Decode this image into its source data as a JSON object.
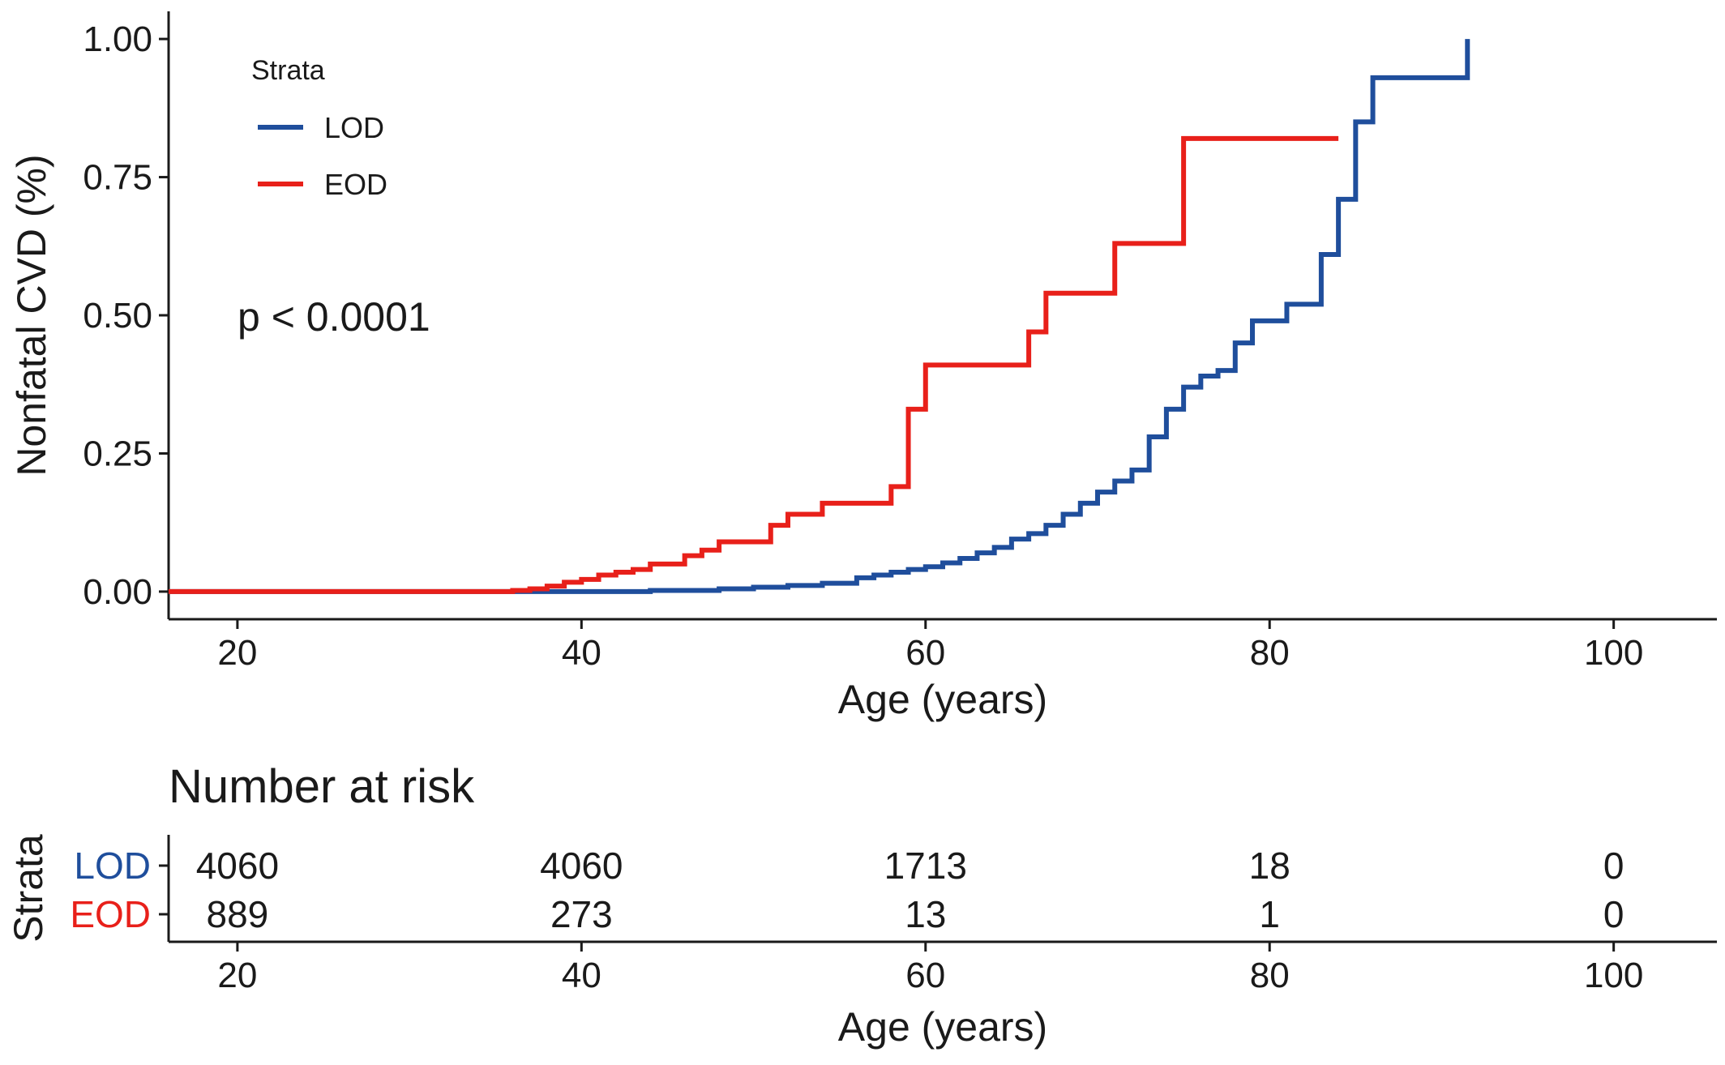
{
  "chart_data": [
    {
      "type": "line",
      "step": true,
      "xlabel": "Age (years)",
      "ylabel": "Nonfatal CVD (%)",
      "xlim": [
        16,
        106
      ],
      "ylim": [
        -0.05,
        1.05
      ],
      "x_ticks": [
        20,
        40,
        60,
        80,
        100
      ],
      "y_ticks": [
        0.0,
        0.25,
        0.5,
        0.75,
        1.0
      ],
      "x_tick_labels": [
        "20",
        "40",
        "60",
        "80",
        "100"
      ],
      "y_tick_labels": [
        "0.00",
        "0.25",
        "0.50",
        "0.75",
        "1.00"
      ],
      "legend": {
        "title": "Strata",
        "placement": "top-left"
      },
      "annotation": "p < 0.0001",
      "series": [
        {
          "name": "LOD",
          "color": "#1f4e9c",
          "points": [
            [
              16,
              0
            ],
            [
              40,
              0
            ],
            [
              44,
              0.002
            ],
            [
              48,
              0.005
            ],
            [
              50,
              0.008
            ],
            [
              52,
              0.011
            ],
            [
              54,
              0.015
            ],
            [
              56,
              0.025
            ],
            [
              57,
              0.03
            ],
            [
              58,
              0.035
            ],
            [
              59,
              0.04
            ],
            [
              60,
              0.045
            ],
            [
              61,
              0.052
            ],
            [
              62,
              0.06
            ],
            [
              63,
              0.07
            ],
            [
              64,
              0.08
            ],
            [
              65,
              0.095
            ],
            [
              66,
              0.105
            ],
            [
              67,
              0.12
            ],
            [
              68,
              0.14
            ],
            [
              69,
              0.16
            ],
            [
              70,
              0.18
            ],
            [
              71,
              0.2
            ],
            [
              72,
              0.22
            ],
            [
              73,
              0.28
            ],
            [
              74,
              0.33
            ],
            [
              75,
              0.37
            ],
            [
              76,
              0.39
            ],
            [
              77,
              0.4
            ],
            [
              78,
              0.45
            ],
            [
              79,
              0.49
            ],
            [
              81,
              0.52
            ],
            [
              83,
              0.61
            ],
            [
              84,
              0.71
            ],
            [
              85,
              0.85
            ],
            [
              86,
              0.93
            ],
            [
              91,
              0.93
            ],
            [
              91.5,
              1.0
            ]
          ]
        },
        {
          "name": "EOD",
          "color": "#e8201a",
          "points": [
            [
              16,
              0
            ],
            [
              35,
              0
            ],
            [
              36,
              0.002
            ],
            [
              37,
              0.005
            ],
            [
              38,
              0.01
            ],
            [
              39,
              0.017
            ],
            [
              40,
              0.022
            ],
            [
              41,
              0.03
            ],
            [
              42,
              0.035
            ],
            [
              43,
              0.04
            ],
            [
              44,
              0.05
            ],
            [
              46,
              0.065
            ],
            [
              47,
              0.075
            ],
            [
              48,
              0.09
            ],
            [
              51,
              0.12
            ],
            [
              52,
              0.14
            ],
            [
              54,
              0.16
            ],
            [
              58,
              0.19
            ],
            [
              59,
              0.33
            ],
            [
              60,
              0.41
            ],
            [
              66,
              0.47
            ],
            [
              67,
              0.54
            ],
            [
              71,
              0.63
            ],
            [
              75,
              0.82
            ],
            [
              84,
              0.82
            ]
          ]
        }
      ]
    },
    {
      "type": "table",
      "title": "Number at risk",
      "ylabel": "Strata",
      "xlabel": "Age (years)",
      "xlim": [
        16,
        106
      ],
      "x_ticks": [
        20,
        40,
        60,
        80,
        100
      ],
      "x_tick_labels": [
        "20",
        "40",
        "60",
        "80",
        "100"
      ],
      "rows": [
        {
          "name": "LOD",
          "color": "#1f4e9c",
          "values": [
            "4060",
            "4060",
            "1713",
            "18",
            "0"
          ]
        },
        {
          "name": "EOD",
          "color": "#e8201a",
          "values": [
            "889",
            "273",
            "13",
            "1",
            "0"
          ]
        }
      ]
    }
  ]
}
